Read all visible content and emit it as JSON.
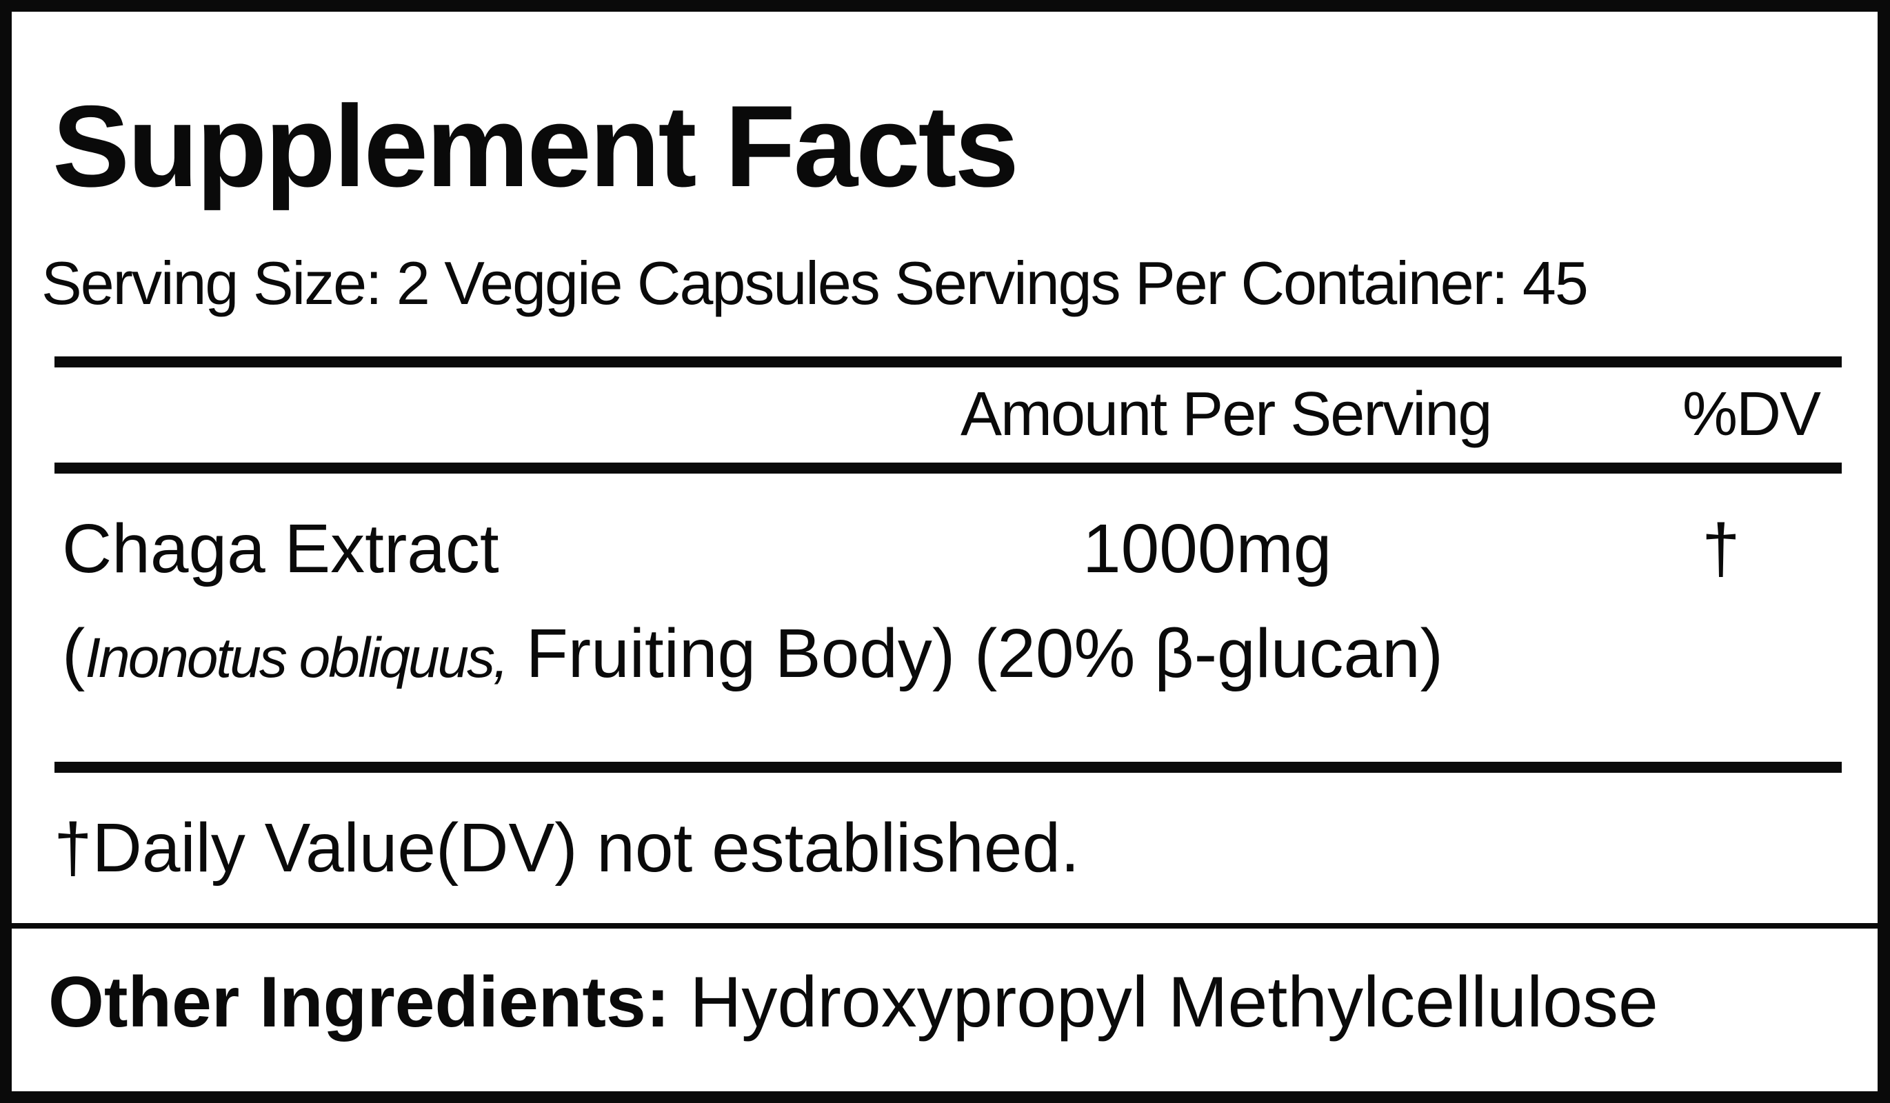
{
  "label": {
    "title": "Supplement Facts",
    "serving_line": "Serving Size: 2 Veggie Capsules  Servings Per Container: 45",
    "header": {
      "amount": "Amount Per Serving",
      "dv": "%DV"
    },
    "ingredients": [
      {
        "name": "Chaga Extract",
        "amount": "1000mg",
        "dv": "†",
        "detail_open": "(",
        "detail_italic": "Inonotus obliquus,",
        "detail_rest": " Fruiting Body) (20% β-glucan)"
      }
    ],
    "footnote": "†Daily Value(DV) not established.",
    "other_ingredients_label": "Other Ingredients:",
    "other_ingredients_value": "Hydroxypropyl Methylcellulose"
  }
}
